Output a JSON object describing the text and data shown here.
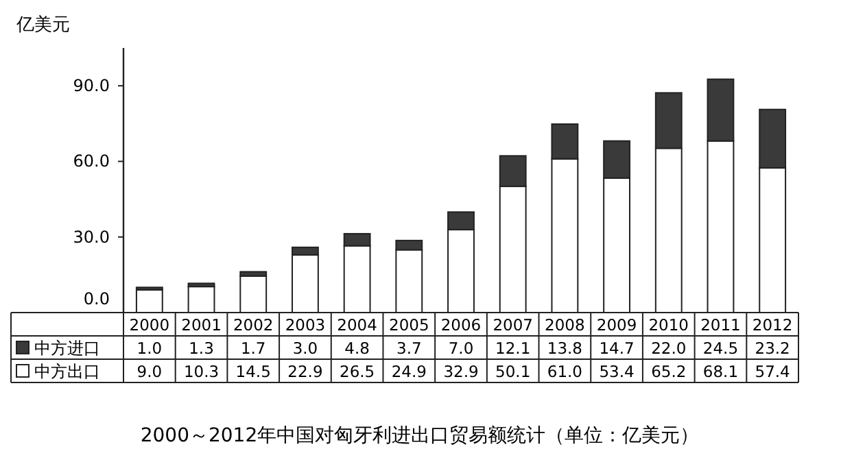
{
  "chart_data": {
    "type": "bar",
    "stacked": true,
    "title": "2000～2012年中国对匈牙利进出口贸易额统计（单位：亿美元）",
    "ylabel": "亿美元",
    "categories": [
      "2000",
      "2001",
      "2002",
      "2003",
      "2004",
      "2005",
      "2006",
      "2007",
      "2008",
      "2009",
      "2010",
      "2011",
      "2012"
    ],
    "series": [
      {
        "name": "中方出口",
        "color": "#ffffff",
        "values": [
          9.0,
          10.3,
          14.5,
          22.9,
          26.5,
          24.9,
          32.9,
          50.1,
          61.0,
          53.4,
          65.2,
          68.1,
          57.4
        ],
        "value_labels": [
          "9.0",
          "10.3",
          "14.5",
          "22.9",
          "26.5",
          "24.9",
          "32.9",
          "50.1",
          "61.0",
          "53.4",
          "65.2",
          "68.1",
          "57.4"
        ]
      },
      {
        "name": "中方进口",
        "color": "#3a3a3a",
        "values": [
          1.0,
          1.3,
          1.7,
          3.0,
          4.8,
          3.7,
          7.0,
          12.1,
          13.8,
          14.7,
          22.0,
          24.5,
          23.2
        ],
        "value_labels": [
          "1.0",
          "1.3",
          "1.7",
          "3.0",
          "4.8",
          "3.7",
          "7.0",
          "12.1",
          "13.8",
          "14.7",
          "22.0",
          "24.5",
          "23.2"
        ]
      }
    ],
    "ylim": [
      0,
      105
    ],
    "yticks": [
      {
        "value": 0,
        "label": "0.0"
      },
      {
        "value": 30,
        "label": "30.0"
      },
      {
        "value": 60,
        "label": "60.0"
      },
      {
        "value": 90,
        "label": "90.0"
      }
    ],
    "legend": "bottom left"
  }
}
